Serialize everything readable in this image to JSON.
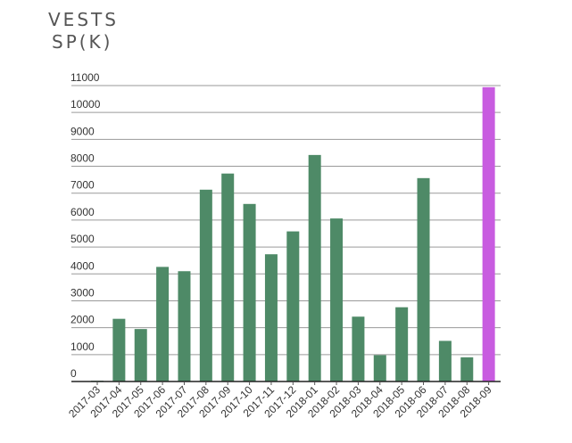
{
  "chart_data": {
    "type": "bar",
    "title_lines": [
      "VESTS",
      "SP(K)"
    ],
    "categories": [
      "2017-03",
      "2017-04",
      "2017-05",
      "2017-06",
      "2017-07",
      "2017-08",
      "2017-09",
      "2017-10",
      "2017-11",
      "2017-12",
      "2018-01",
      "2018-02",
      "2018-03",
      "2018-04",
      "2018-05",
      "2018-06",
      "2018-07",
      "2018-08",
      "2018-09"
    ],
    "values": [
      30,
      2330,
      1950,
      4260,
      4100,
      7130,
      7730,
      6600,
      4730,
      5580,
      8420,
      6060,
      2410,
      980,
      2760,
      7560,
      1510,
      900,
      10940
    ],
    "bar_colors": [
      "#4e8a67",
      "#4e8a67",
      "#4e8a67",
      "#4e8a67",
      "#4e8a67",
      "#4e8a67",
      "#4e8a67",
      "#4e8a67",
      "#4e8a67",
      "#4e8a67",
      "#4e8a67",
      "#4e8a67",
      "#4e8a67",
      "#4e8a67",
      "#4e8a67",
      "#4e8a67",
      "#4e8a67",
      "#4e8a67",
      "#c85ce0"
    ],
    "yticks": [
      0,
      1000,
      2000,
      3000,
      4000,
      5000,
      6000,
      7000,
      8000,
      9000,
      10000,
      11000
    ],
    "ylim": [
      0,
      11000
    ],
    "grid": true,
    "legend": "none",
    "xlabel": "",
    "ylabel": ""
  }
}
